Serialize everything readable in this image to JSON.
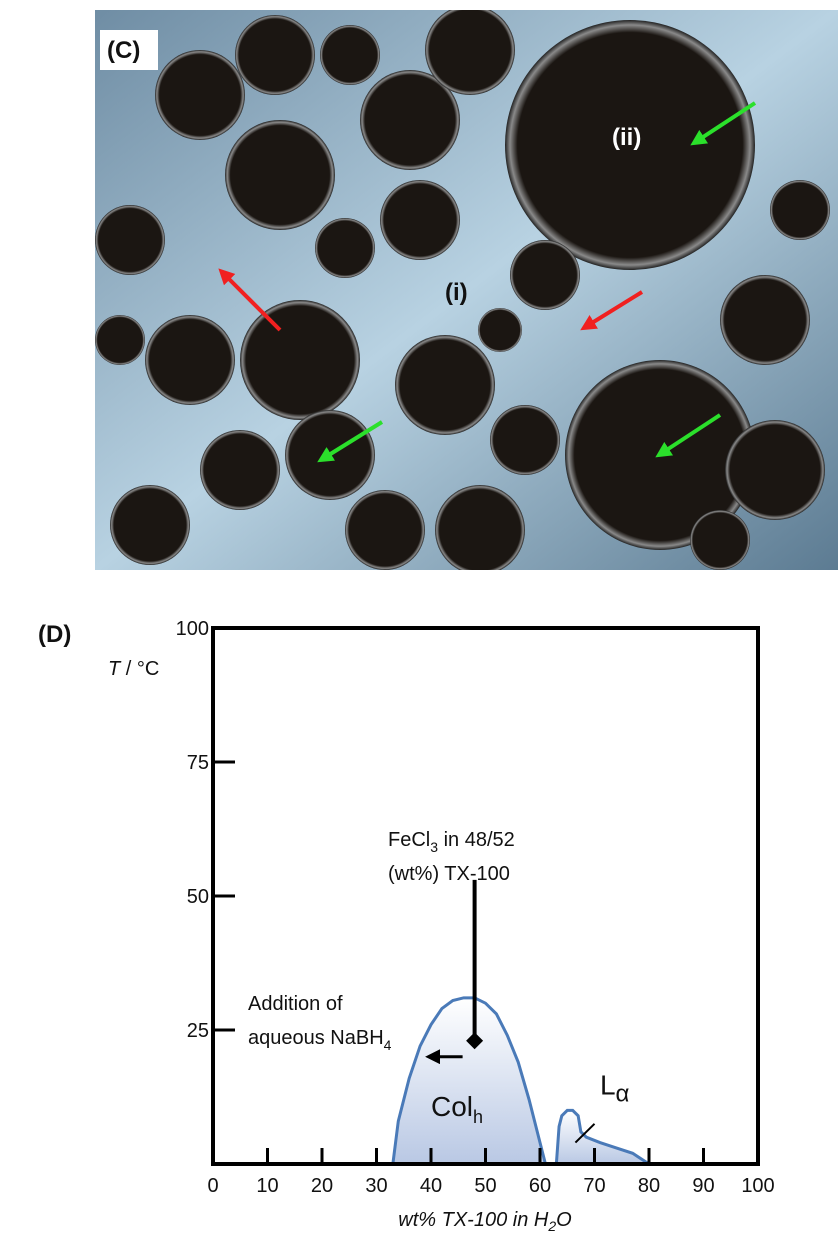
{
  "panel_c": {
    "label": "(C)",
    "region_ii": "(ii)",
    "region_i": "(i)"
  },
  "chart_data": {
    "type": "phase",
    "panel_label": "(D)",
    "y_label": [
      "T",
      " / °C"
    ],
    "x_label": [
      "wt% TX-100 in H",
      "2",
      "O"
    ],
    "xlim": [
      0,
      100
    ],
    "ylim": [
      0,
      100
    ],
    "xticks": [
      0,
      10,
      20,
      30,
      40,
      50,
      60,
      70,
      80,
      90,
      100
    ],
    "yticks": [
      25,
      50,
      75,
      100
    ],
    "regions": [
      {
        "label": [
          "Col",
          "h"
        ],
        "color": "#4a7ab8",
        "x": [
          33,
          34,
          36,
          38,
          40,
          42,
          44,
          46,
          48,
          50,
          52,
          54,
          56,
          58,
          60,
          61
        ],
        "y": [
          0,
          8,
          16,
          22,
          26,
          29,
          30.5,
          31,
          31,
          30,
          28,
          24,
          19,
          12,
          4,
          0
        ]
      },
      {
        "label": [
          "L",
          "α"
        ],
        "color": "#4a7ab8",
        "x": [
          63,
          63.5,
          64,
          65,
          66,
          67,
          67.5,
          68.5,
          71,
          74,
          77,
          80
        ],
        "y": [
          0,
          7,
          9,
          10,
          10,
          9,
          6,
          5,
          4,
          3,
          2,
          0
        ]
      }
    ],
    "start_point": {
      "x": 48,
      "y": 23
    },
    "annotation_top": [
      "FeCl",
      "3",
      " in 48/52"
    ],
    "annotation_bottom": "(wt%) TX-100",
    "arrow_text_top": "Addition of",
    "arrow_text_bottom": [
      "aqueous NaBH",
      "4"
    ]
  }
}
